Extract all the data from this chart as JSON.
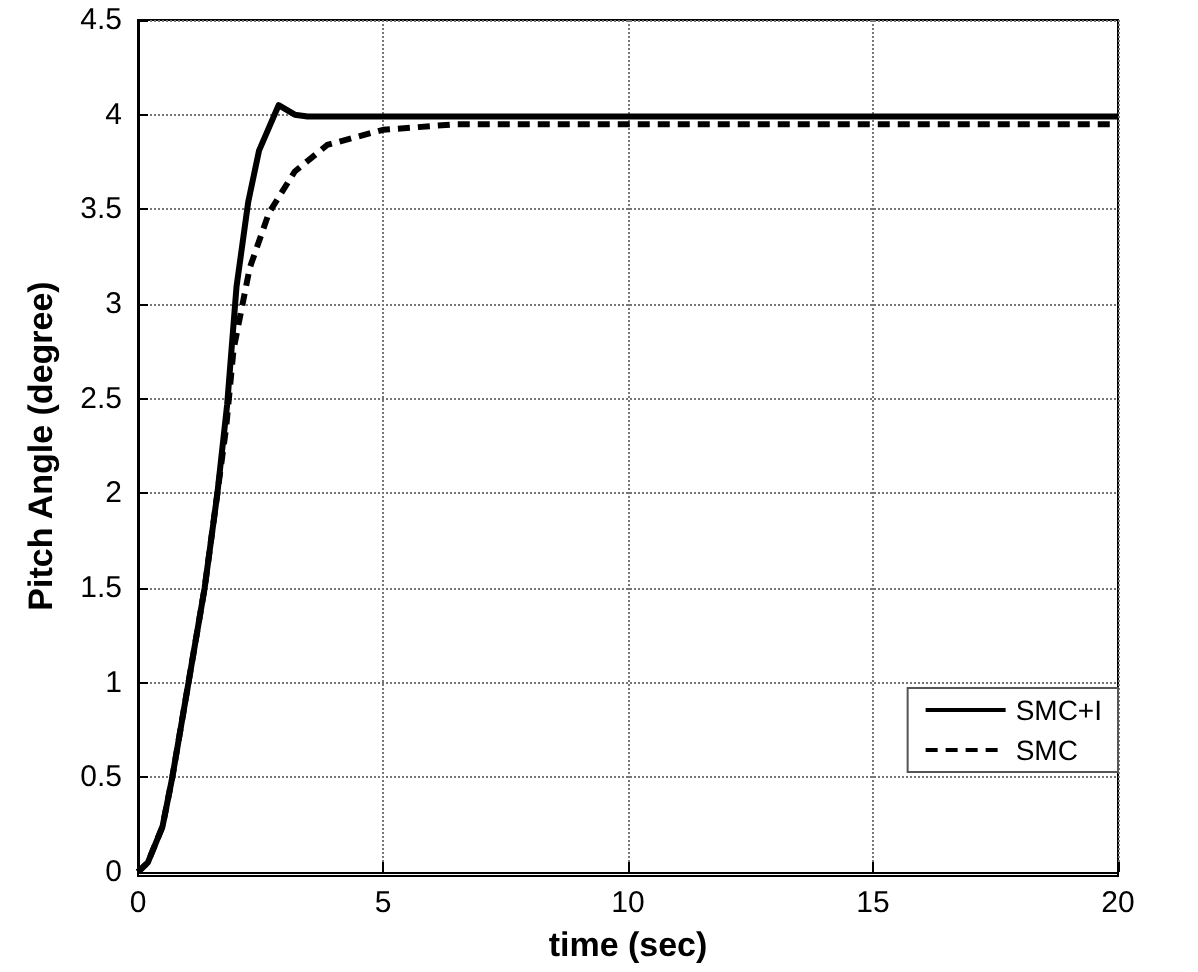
{
  "chart_data": {
    "type": "line",
    "xlabel": "time (sec)",
    "ylabel": "Pitch Angle (degree)",
    "xlim": [
      0,
      20
    ],
    "ylim": [
      0,
      4.5
    ],
    "xticks": [
      0,
      5,
      10,
      15,
      20
    ],
    "yticks": [
      0,
      0.5,
      1,
      1.5,
      2,
      2.5,
      3,
      3.5,
      4,
      4.5
    ],
    "grid": true,
    "legend": "bottom right",
    "marker": "none",
    "series": [
      {
        "name": "SMC+I",
        "color": "#000000",
        "line_style": "solid",
        "x": [
          0,
          0.2,
          0.5,
          0.7,
          1.03,
          1.36,
          1.62,
          1.82,
          2.01,
          2.25,
          2.47,
          2.87,
          3.2,
          3.46,
          5,
          10,
          15,
          20
        ],
        "values": [
          0,
          0.05,
          0.24,
          0.5,
          1.0,
          1.5,
          2.0,
          2.47,
          3.09,
          3.54,
          3.81,
          4.05,
          4.0,
          3.99,
          3.99,
          3.99,
          3.99,
          3.99
        ]
      },
      {
        "name": "SMC",
        "color": "#000000",
        "line_style": "dashed",
        "x": [
          0,
          0.2,
          0.5,
          0.7,
          1.03,
          1.36,
          1.62,
          1.8,
          1.95,
          2.28,
          2.67,
          3.2,
          3.86,
          5,
          6.5,
          8,
          10,
          15,
          20
        ],
        "values": [
          0,
          0.05,
          0.24,
          0.5,
          1.0,
          1.5,
          2.0,
          2.35,
          2.76,
          3.19,
          3.48,
          3.7,
          3.84,
          3.92,
          3.95,
          3.95,
          3.95,
          3.95,
          3.95
        ]
      }
    ]
  }
}
